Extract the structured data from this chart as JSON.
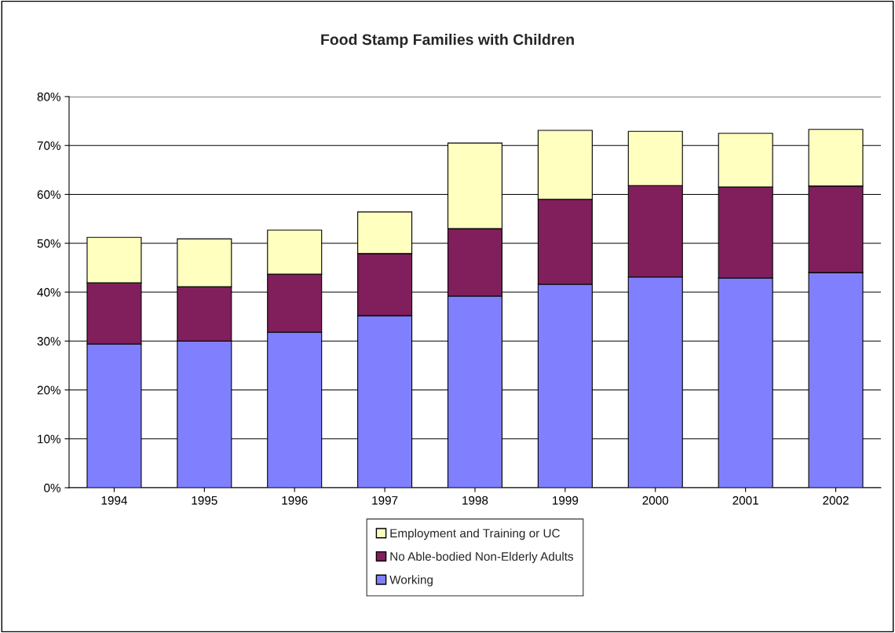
{
  "chart_data": {
    "type": "bar",
    "title": "Food Stamp Families with Children",
    "stacked": true,
    "categories": [
      "1994",
      "1995",
      "1996",
      "1997",
      "1998",
      "1999",
      "2000",
      "2001",
      "2002"
    ],
    "series": [
      {
        "name": "Working",
        "color": "#8080ff",
        "values": [
          29.4,
          30.0,
          31.8,
          35.2,
          39.2,
          41.6,
          43.1,
          42.9,
          44.0
        ]
      },
      {
        "name": "No Able-bodied Non-Elderly Adults",
        "color": "#801f5c",
        "values": [
          12.5,
          11.1,
          11.9,
          12.7,
          13.8,
          17.4,
          18.7,
          18.6,
          17.7
        ]
      },
      {
        "name": "Employment and Training or UC",
        "color": "#ffffc0",
        "values": [
          9.3,
          9.8,
          9.0,
          8.5,
          17.5,
          14.1,
          11.1,
          11.0,
          11.6
        ]
      }
    ],
    "ylim": [
      0,
      80
    ],
    "yticks": [
      {
        "value": 0,
        "label": "0%"
      },
      {
        "value": 10,
        "label": "10%"
      },
      {
        "value": 20,
        "label": "20%"
      },
      {
        "value": 30,
        "label": "30%"
      },
      {
        "value": 40,
        "label": "40%"
      },
      {
        "value": 50,
        "label": "50%"
      },
      {
        "value": 60,
        "label": "60%"
      },
      {
        "value": 70,
        "label": "70%"
      },
      {
        "value": 80,
        "label": "80%"
      }
    ],
    "grid": "y",
    "legend": "bottom"
  }
}
